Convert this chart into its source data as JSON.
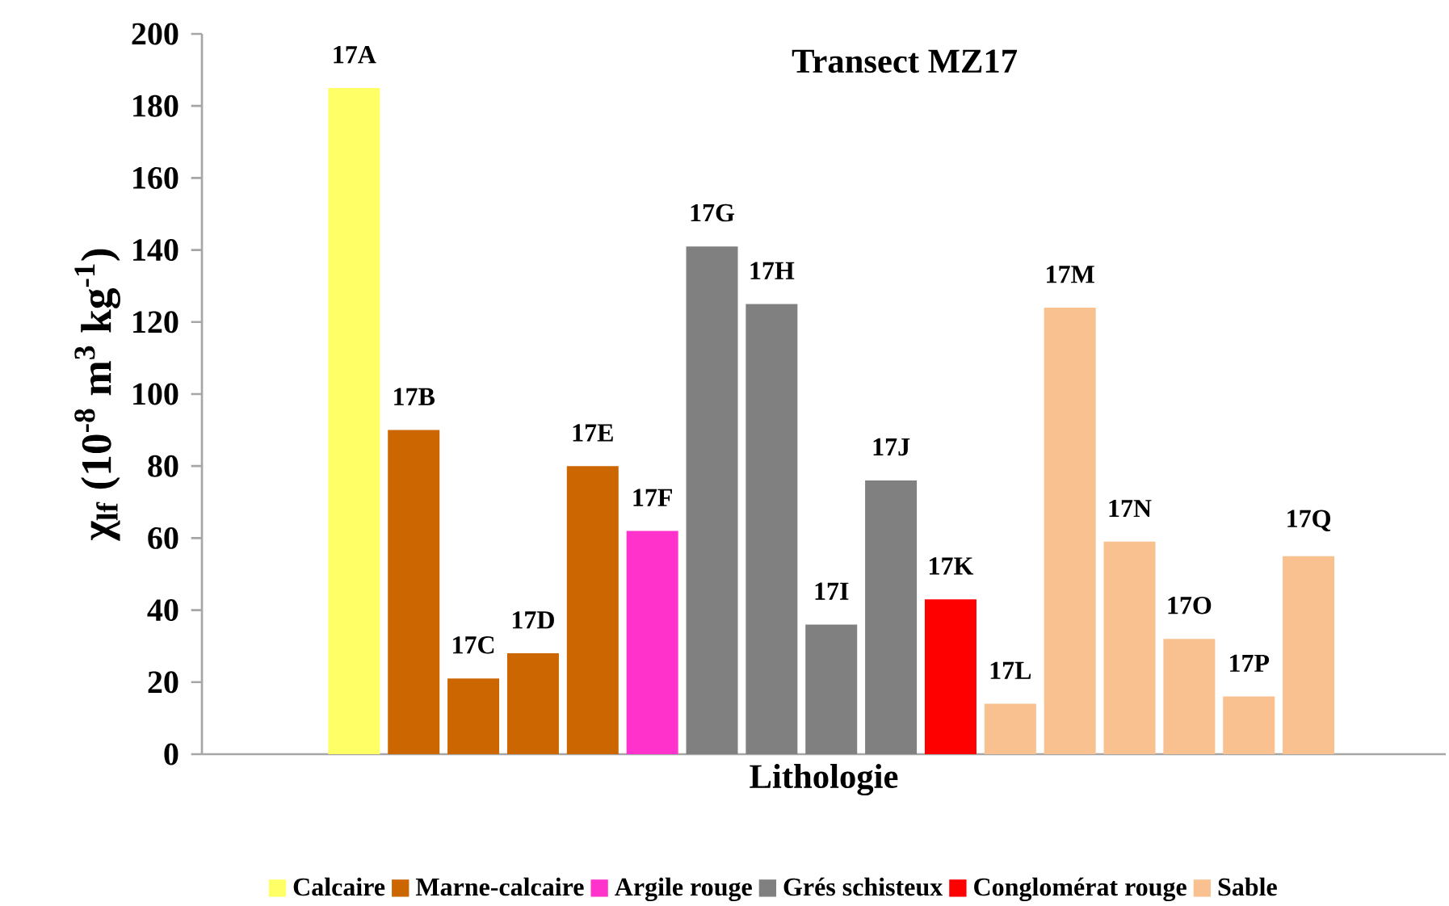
{
  "chart_data": {
    "type": "bar",
    "title": "Transect MZ17",
    "xlabel": "Lithologie",
    "ylabel": "χ$_{lf}$ (10$^{-8}$ m$^{3}$ kg$^{-1}$)",
    "categories": [
      "17A",
      "17B",
      "17C",
      "17D",
      "17E",
      "17F",
      "17G",
      "17H",
      "17I",
      "17J",
      "17K",
      "17L",
      "17M",
      "17N",
      "17O",
      "17P",
      "17Q"
    ],
    "series": [
      {
        "name": "Calcaire",
        "color": "#ffff66",
        "values": [
          185,
          null,
          null,
          null,
          null,
          null,
          null,
          null,
          null,
          null,
          null,
          null,
          null,
          null,
          null,
          null,
          null
        ]
      },
      {
        "name": "Marne-calcaire",
        "color": "#cc6600",
        "values": [
          null,
          90,
          21,
          28,
          80,
          null,
          null,
          null,
          null,
          null,
          null,
          null,
          null,
          null,
          null,
          null,
          null
        ]
      },
      {
        "name": "Argile rouge",
        "color": "#ff33cc",
        "values": [
          null,
          null,
          null,
          null,
          null,
          62,
          null,
          null,
          null,
          null,
          null,
          null,
          null,
          null,
          null,
          null,
          null
        ]
      },
      {
        "name": "Grés schisteux",
        "color": "#808080",
        "values": [
          null,
          null,
          null,
          null,
          null,
          null,
          141,
          125,
          36,
          76,
          null,
          null,
          null,
          null,
          null,
          null,
          null
        ]
      },
      {
        "name": "Conglomérat rouge",
        "color": "#ff0000",
        "values": [
          null,
          null,
          null,
          null,
          null,
          null,
          null,
          null,
          null,
          null,
          43,
          null,
          null,
          null,
          null,
          null,
          null
        ]
      },
      {
        "name": "Sable",
        "color": "#f9c090",
        "values": [
          null,
          null,
          null,
          null,
          null,
          null,
          null,
          null,
          null,
          null,
          null,
          14,
          124,
          59,
          32,
          16,
          55
        ]
      }
    ],
    "ylim": [
      0,
      200
    ],
    "yticks": [
      0,
      20,
      40,
      60,
      80,
      100,
      120,
      140,
      160,
      180,
      200
    ],
    "grid": false,
    "legend": "bottom"
  }
}
